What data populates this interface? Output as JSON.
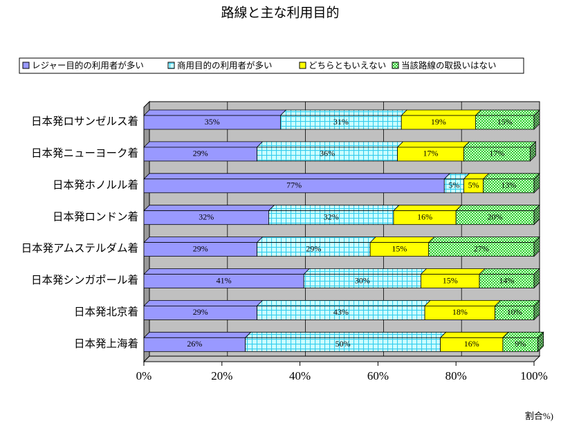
{
  "chart_data": {
    "type": "bar",
    "orientation": "horizontal",
    "stacked": true,
    "title": "路線と主な利用目的",
    "x_label": "割合%)",
    "categories": [
      "日本発ロサンゼルス着",
      "日本発ニューヨーク着",
      "日本発ホノルル着",
      "日本発ロンドン着",
      "日本発アムステルダム着",
      "日本発シンガポール着",
      "日本発北京着",
      "日本発上海着"
    ],
    "series": [
      {
        "name": "レジャー目的の利用者が多い",
        "color": "#9999ff",
        "pattern": "solid",
        "values": [
          35,
          29,
          77,
          32,
          29,
          41,
          29,
          26
        ],
        "value_labels": [
          "35%",
          "29%",
          "77%",
          "32%",
          "29%",
          "41%",
          "29%",
          "26%"
        ]
      },
      {
        "name": "商用目的の利用者が多い",
        "color": "#ccffff",
        "pattern": "grid",
        "values": [
          31,
          36,
          5,
          32,
          29,
          30,
          43,
          50
        ],
        "value_labels": [
          "31%",
          "36%",
          "5%",
          "32%",
          "29%",
          "30%",
          "43%",
          "50%"
        ]
      },
      {
        "name": "どちらともいえない",
        "color": "#ffff00",
        "pattern": "solid",
        "values": [
          19,
          17,
          5,
          16,
          15,
          15,
          18,
          16
        ],
        "value_labels": [
          "19%",
          "17%",
          "5%",
          "16%",
          "15%",
          "15%",
          "18%",
          "16%"
        ]
      },
      {
        "name": "当該路線の取扱いはない",
        "color": "#33cc33",
        "pattern": "checker",
        "values": [
          15,
          17,
          13,
          20,
          27,
          14,
          10,
          9
        ],
        "value_labels": [
          "15%",
          "17%",
          "13%",
          "20%",
          "27%",
          "14%",
          "10%",
          "9%"
        ]
      }
    ],
    "xlim": [
      0,
      100
    ],
    "xticks": [
      {
        "value": 0,
        "label": "0%"
      },
      {
        "value": 20,
        "label": "20%"
      },
      {
        "value": 40,
        "label": "40%"
      },
      {
        "value": 60,
        "label": "60%"
      },
      {
        "value": 80,
        "label": "80%"
      },
      {
        "value": 100,
        "label": "100%"
      }
    ],
    "grid": true,
    "legend": "top"
  }
}
